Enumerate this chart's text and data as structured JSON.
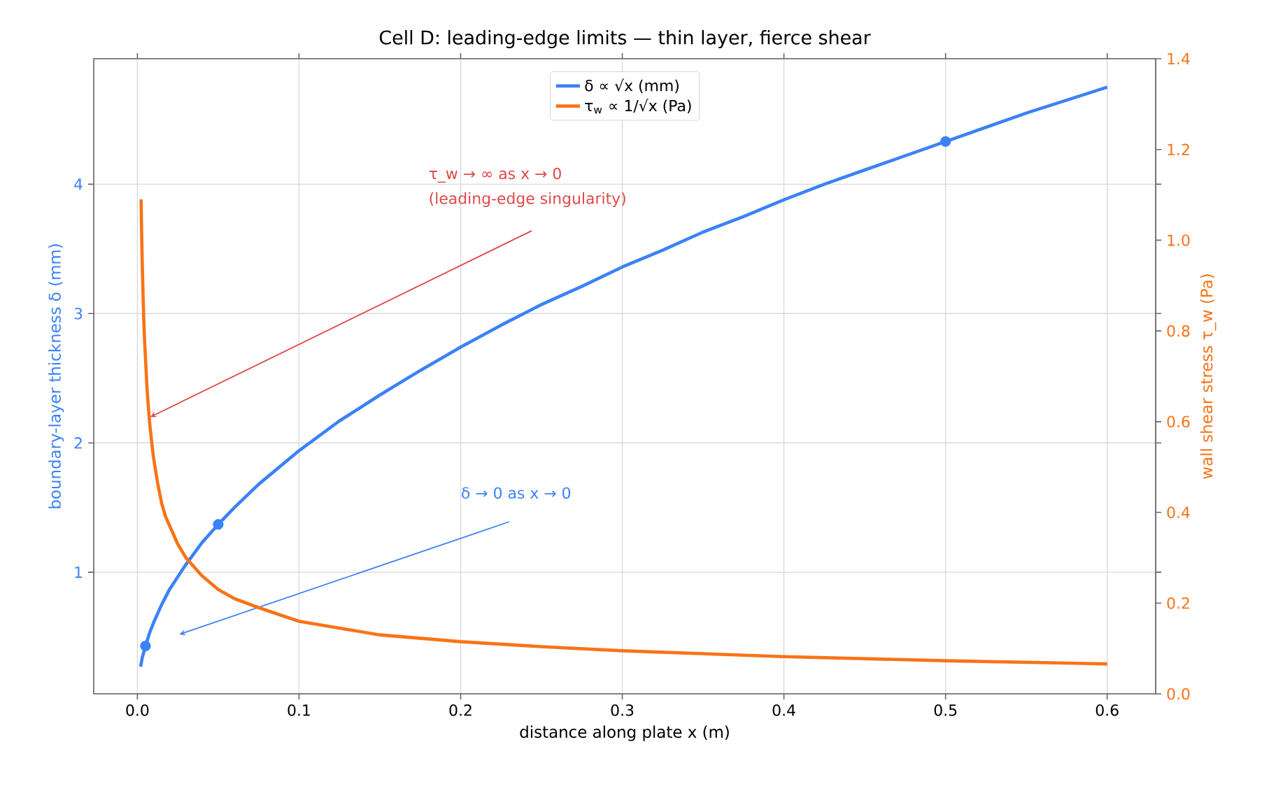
{
  "chart_data": {
    "type": "line",
    "title": "Cell D: leading-edge limits — thin layer, fierce shear",
    "xlabel": "distance along plate  x  (m)",
    "ylabel": "boundary-layer thickness  δ  (mm)",
    "y2label": "wall shear stress  τ_w  (Pa)",
    "xlim": [
      -0.027,
      0.63
    ],
    "ylim": [
      0.06,
      4.97
    ],
    "y2lim": [
      0,
      1.4
    ],
    "xticks": [
      {
        "value": 0,
        "label": "0.0"
      },
      0.1,
      0.2,
      0.3,
      0.4,
      0.5,
      0.6
    ],
    "yticks": [
      1,
      2,
      3,
      4
    ],
    "y2ticks": [
      {
        "value": 0,
        "label": "0.0"
      },
      0.2,
      0.4,
      0.6,
      0.8,
      {
        "value": 1,
        "label": "1.0"
      },
      1.2,
      1.4
    ],
    "grid": true,
    "legend": "top",
    "series": [
      {
        "name": "δ ∝ √x (mm)",
        "color": "#3b82f6",
        "x": [
          0.002,
          0.003,
          0.005,
          0.0075,
          0.01,
          0.015,
          0.02,
          0.03,
          0.04,
          0.05,
          0.06,
          0.075,
          0.1,
          0.125,
          0.15,
          0.175,
          0.2,
          0.225,
          0.25,
          0.275,
          0.3,
          0.325,
          0.35,
          0.375,
          0.4,
          0.425,
          0.45,
          0.475,
          0.5,
          0.525,
          0.55,
          0.575,
          0.6
        ],
        "values": [
          0.27,
          0.34,
          0.43,
          0.53,
          0.61,
          0.75,
          0.87,
          1.06,
          1.23,
          1.37,
          1.5,
          1.68,
          1.94,
          2.17,
          2.37,
          2.56,
          2.74,
          2.91,
          3.07,
          3.21,
          3.36,
          3.49,
          3.63,
          3.75,
          3.88,
          4.0,
          4.11,
          4.22,
          4.33,
          4.44,
          4.55,
          4.65,
          4.75
        ]
      },
      {
        "name": "τ$_{w}$ ∝ 1/√x (Pa)",
        "axis": "y2",
        "color": "#f97316",
        "x": [
          0.0023,
          0.0026,
          0.003,
          0.0035,
          0.004,
          0.0045,
          0.005,
          0.006,
          0.0075,
          0.009,
          0.01,
          0.0125,
          0.015,
          0.0175,
          0.02,
          0.025,
          0.03,
          0.04,
          0.05,
          0.06,
          0.075,
          0.1,
          0.125,
          0.15,
          0.2,
          0.25,
          0.3,
          0.4,
          0.5,
          0.6
        ],
        "values": [
          1.09,
          1.02,
          0.95,
          0.88,
          0.82,
          0.775,
          0.74,
          0.67,
          0.6,
          0.55,
          0.52,
          0.465,
          0.42,
          0.39,
          0.37,
          0.33,
          0.3,
          0.26,
          0.23,
          0.21,
          0.19,
          0.16,
          0.145,
          0.13,
          0.115,
          0.104,
          0.095,
          0.082,
          0.073,
          0.066
        ]
      },
      {
        "type": "scatter",
        "color": "#3b82f6",
        "x": [
          0.005,
          0.05,
          0.5
        ],
        "values": [
          0.43,
          1.37,
          4.33
        ]
      }
    ],
    "annotations": [
      "τ_w → ∞  as  x → 0",
      "(leading-edge singularity)",
      "δ → 0  as  x → 0"
    ]
  }
}
